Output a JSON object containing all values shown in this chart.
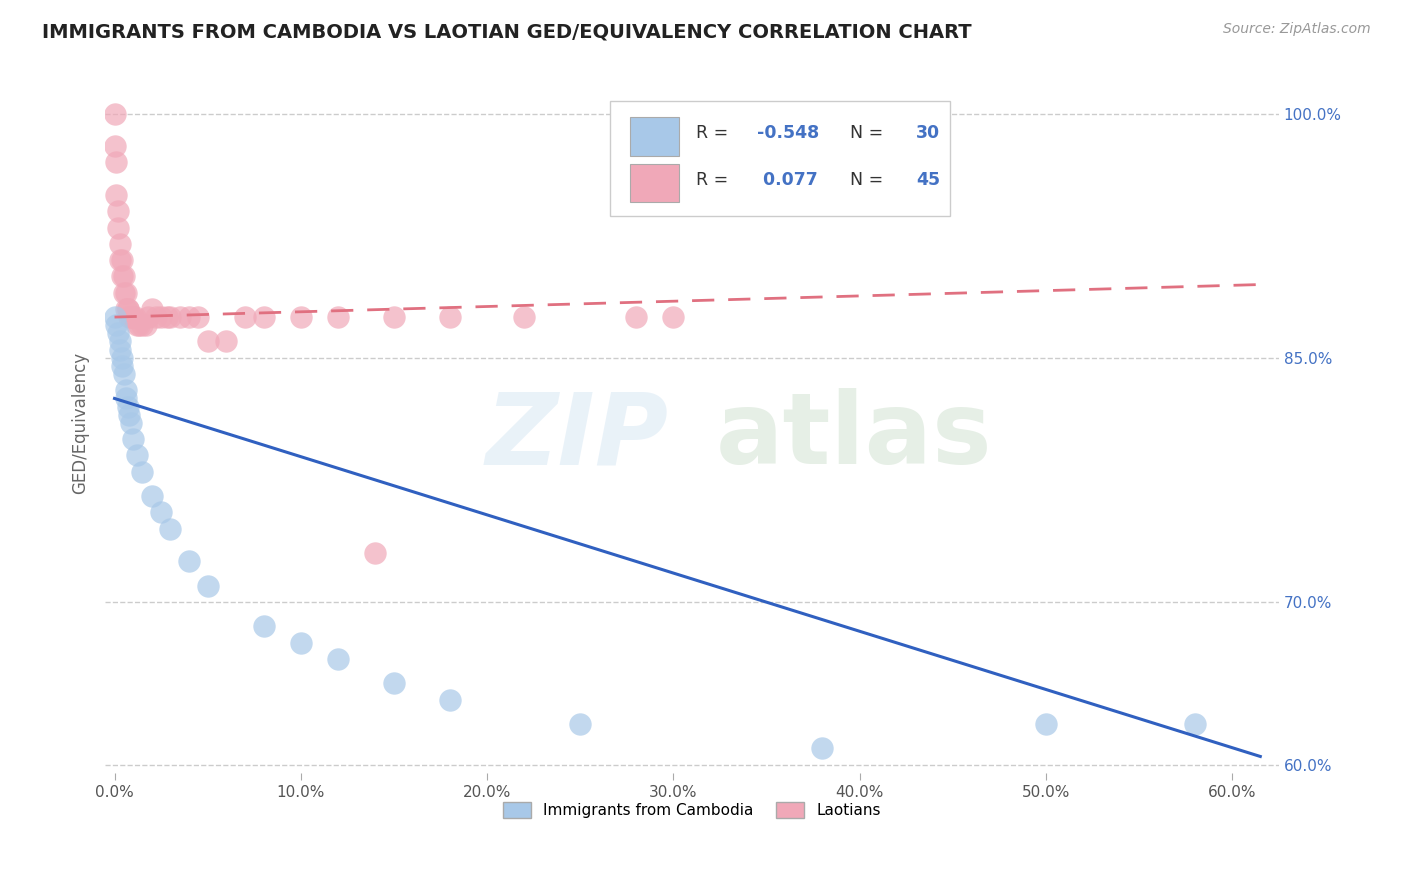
{
  "title": "IMMIGRANTS FROM CAMBODIA VS LAOTIAN GED/EQUIVALENCY CORRELATION CHART",
  "source": "Source: ZipAtlas.com",
  "ylabel": "GED/Equivalency",
  "xlim": [
    -0.005,
    0.625
  ],
  "ylim": [
    0.595,
    1.025
  ],
  "yticks": [
    0.6,
    0.7,
    0.85,
    1.0
  ],
  "ytick_labels": [
    "60.0%",
    "70.0%",
    "85.0%",
    "100.0%"
  ],
  "xticks": [
    0.0,
    0.1,
    0.2,
    0.3,
    0.4,
    0.5,
    0.6
  ],
  "xtick_labels": [
    "0.0%",
    "10.0%",
    "20.0%",
    "30.0%",
    "40.0%",
    "50.0%",
    "60.0%"
  ],
  "blue_color": "#a8c8e8",
  "pink_color": "#f0a8b8",
  "blue_line_color": "#3060c0",
  "pink_line_color": "#e07080",
  "blue_R": -0.548,
  "blue_N": 30,
  "pink_R": 0.077,
  "pink_N": 45,
  "legend_label_blue": "Immigrants from Cambodia",
  "legend_label_pink": "Laotians",
  "blue_points_x": [
    0.0,
    0.001,
    0.002,
    0.003,
    0.003,
    0.004,
    0.004,
    0.005,
    0.006,
    0.006,
    0.007,
    0.008,
    0.009,
    0.01,
    0.012,
    0.015,
    0.02,
    0.025,
    0.03,
    0.04,
    0.05,
    0.08,
    0.1,
    0.12,
    0.15,
    0.18,
    0.25,
    0.38,
    0.5,
    0.58
  ],
  "blue_points_y": [
    0.875,
    0.87,
    0.865,
    0.86,
    0.855,
    0.85,
    0.845,
    0.84,
    0.83,
    0.825,
    0.82,
    0.815,
    0.81,
    0.8,
    0.79,
    0.78,
    0.765,
    0.755,
    0.745,
    0.725,
    0.71,
    0.685,
    0.675,
    0.665,
    0.65,
    0.64,
    0.625,
    0.61,
    0.625,
    0.625
  ],
  "pink_points_x": [
    0.0,
    0.0,
    0.001,
    0.001,
    0.002,
    0.002,
    0.003,
    0.003,
    0.004,
    0.004,
    0.005,
    0.005,
    0.006,
    0.006,
    0.007,
    0.007,
    0.008,
    0.009,
    0.01,
    0.011,
    0.012,
    0.013,
    0.015,
    0.017,
    0.018,
    0.02,
    0.022,
    0.025,
    0.028,
    0.03,
    0.035,
    0.04,
    0.045,
    0.05,
    0.06,
    0.07,
    0.08,
    0.1,
    0.12,
    0.14,
    0.15,
    0.18,
    0.22,
    0.28,
    0.3
  ],
  "pink_points_y": [
    1.0,
    0.98,
    0.97,
    0.95,
    0.94,
    0.93,
    0.92,
    0.91,
    0.91,
    0.9,
    0.9,
    0.89,
    0.89,
    0.88,
    0.88,
    0.88,
    0.875,
    0.875,
    0.875,
    0.875,
    0.87,
    0.87,
    0.87,
    0.87,
    0.875,
    0.88,
    0.875,
    0.875,
    0.875,
    0.875,
    0.875,
    0.875,
    0.875,
    0.86,
    0.86,
    0.875,
    0.875,
    0.875,
    0.875,
    0.73,
    0.875,
    0.875,
    0.875,
    0.875,
    0.875
  ],
  "blue_trend_x0": 0.0,
  "blue_trend_x1": 0.615,
  "blue_trend_y0": 0.825,
  "blue_trend_y1": 0.605,
  "pink_trend_x0": 0.0,
  "pink_trend_x1": 0.615,
  "pink_trend_y0": 0.875,
  "pink_trend_y1": 0.895,
  "watermark_zip": "ZIP",
  "watermark_atlas": "atlas"
}
